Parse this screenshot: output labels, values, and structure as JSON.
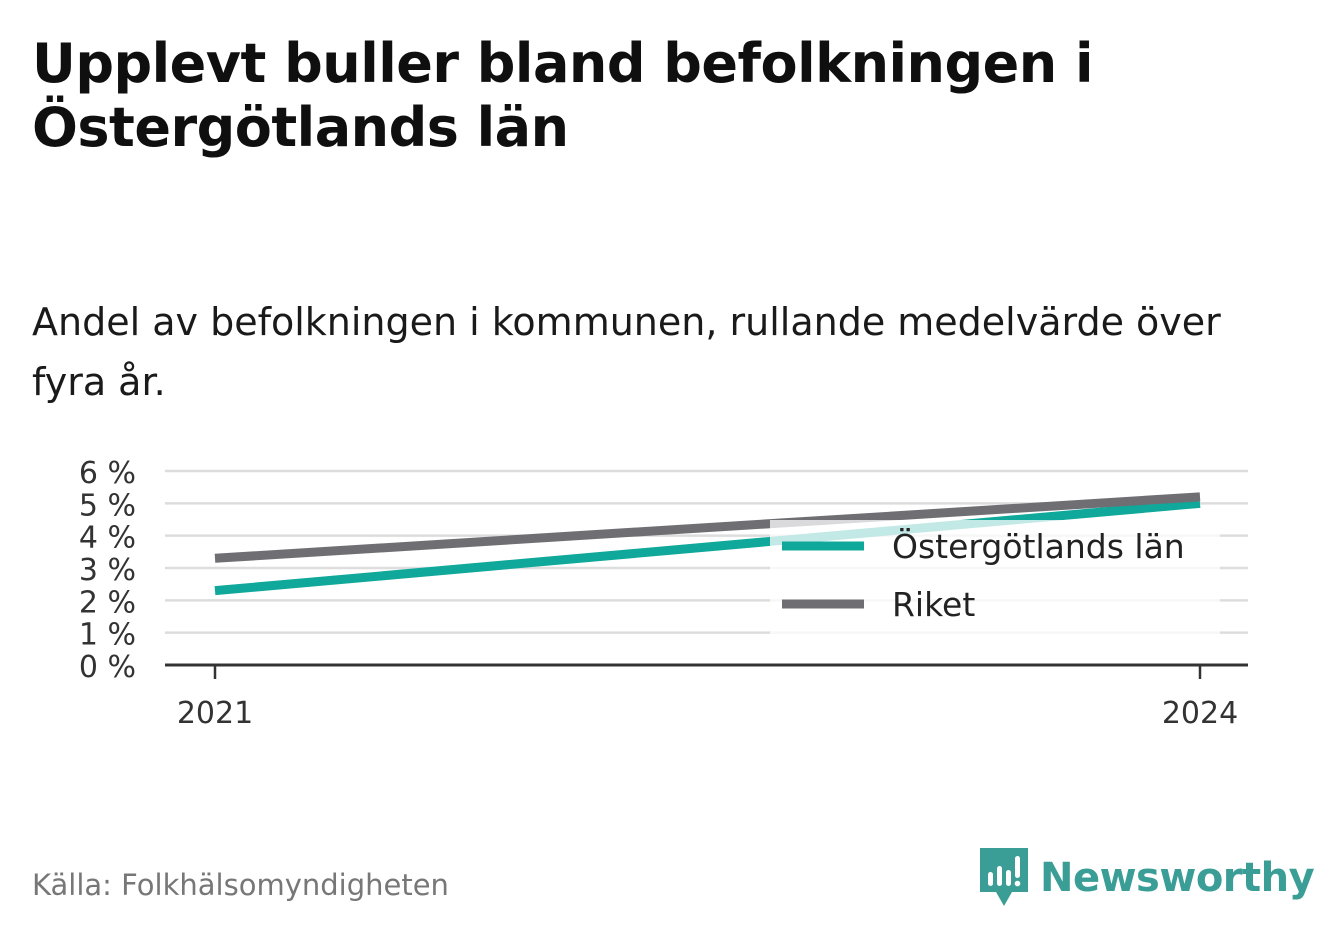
{
  "title": "Upplevt buller bland befolkningen i Östergötlands län",
  "subtitle": "Andel av befolkningen i kommunen, rullande medelvärde över fyra år.",
  "source": "Källa: Folkhälsomyndigheten",
  "brand": {
    "name": "Newsworthy",
    "icon": "newsworthy-logo-icon",
    "color": "#3a9e96"
  },
  "chart_data": {
    "type": "line",
    "x": [
      2021,
      2024
    ],
    "xticks": [
      "2021",
      "2024"
    ],
    "ylim": [
      0,
      6
    ],
    "yticks": [
      "0 %",
      "1 %",
      "2 %",
      "3 %",
      "4 %",
      "5 %",
      "6 %"
    ],
    "grid": true,
    "legend_position": "right",
    "series": [
      {
        "name": "Östergötlands län",
        "color": "#0fa89a",
        "values": [
          2.3,
          5.0
        ]
      },
      {
        "name": "Riket",
        "color": "#6e6e73",
        "values": [
          3.3,
          5.2
        ]
      }
    ]
  }
}
